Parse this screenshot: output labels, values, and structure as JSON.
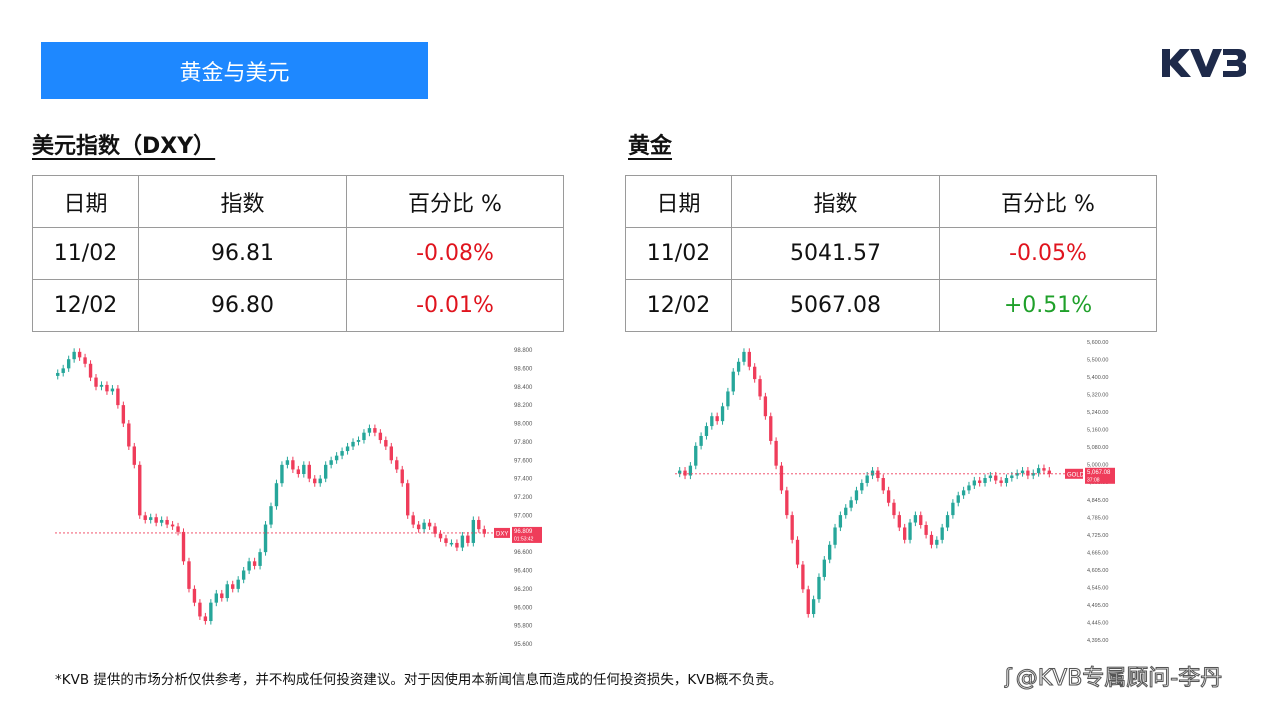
{
  "banner": {
    "title": "黄金与美元"
  },
  "brand": {
    "logo_text": "KVB",
    "color": "#1e2a4a"
  },
  "dxy": {
    "heading": "美元指数（DXY）",
    "headers": [
      "日期",
      "指数",
      "百分比 %"
    ],
    "rows": [
      {
        "date": "11/02",
        "value": "96.81",
        "change": "-0.08%",
        "direction": "down"
      },
      {
        "date": "12/02",
        "value": "96.80",
        "change": "-0.01%",
        "direction": "down"
      }
    ]
  },
  "gold": {
    "heading": "黄金",
    "headers": [
      "日期",
      "指数",
      "百分比 %"
    ],
    "rows": [
      {
        "date": "11/02",
        "value": "5041.57",
        "change": "-0.05%",
        "direction": "down"
      },
      {
        "date": "12/02",
        "value": "5067.08",
        "change": "+0.51%",
        "direction": "up"
      }
    ]
  },
  "colors": {
    "accent": "#1e88ff",
    "negative": "#e0141e",
    "positive": "#1fa02a",
    "bull": "#26a69a",
    "bear": "#ef3c5a"
  },
  "chart_data": [
    {
      "type": "candlestick",
      "symbol_label": "DXY",
      "last_price_label": "96.809",
      "sub_label": "01:53:42",
      "ylim": [
        95.6,
        98.8
      ],
      "y_ticks": [
        "98.800",
        "98.600",
        "98.400",
        "98.200",
        "98.000",
        "97.800",
        "97.600",
        "97.400",
        "97.200",
        "97.000",
        "96.800",
        "96.600",
        "96.400",
        "96.200",
        "96.000",
        "95.800",
        "95.600"
      ],
      "last_value": 96.809,
      "close_path": [
        98.55,
        98.6,
        98.7,
        98.78,
        98.72,
        98.65,
        98.5,
        98.4,
        98.42,
        98.35,
        98.38,
        98.2,
        98.0,
        97.75,
        97.55,
        97.0,
        96.95,
        96.98,
        96.92,
        96.95,
        96.9,
        96.88,
        96.82,
        96.5,
        96.2,
        96.05,
        95.9,
        95.85,
        96.05,
        96.15,
        96.1,
        96.25,
        96.2,
        96.3,
        96.4,
        96.5,
        96.45,
        96.6,
        96.9,
        97.1,
        97.35,
        97.55,
        97.6,
        97.5,
        97.45,
        97.55,
        97.4,
        97.35,
        97.4,
        97.55,
        97.6,
        97.65,
        97.7,
        97.75,
        97.8,
        97.82,
        97.9,
        97.95,
        97.9,
        97.82,
        97.75,
        97.6,
        97.5,
        97.35,
        97.0,
        96.9,
        96.85,
        96.92,
        96.88,
        96.8,
        96.75,
        96.7,
        96.7,
        96.65,
        96.78,
        96.7,
        96.95,
        96.85,
        96.8
      ]
    },
    {
      "type": "candlestick",
      "symbol_label": "GOLD",
      "last_price_label": "5,067.08",
      "sub_label": "37:08",
      "ylim": [
        4395,
        5600
      ],
      "y_ticks": [
        "5,600.00",
        "5,500.00",
        "5,400.00",
        "5,320.00",
        "5,240.00",
        "5,160.00",
        "5,080.00",
        "5,000.00",
        "4,900.00",
        "4,845.00",
        "4,785.00",
        "4,725.00",
        "4,665.00",
        "4,605.00",
        "4,545.00",
        "4,495.00",
        "4,445.00",
        "4,395.00"
      ],
      "last_value": 5067.08,
      "close_path": [
        5080,
        5060,
        5100,
        5180,
        5220,
        5260,
        5300,
        5280,
        5340,
        5400,
        5480,
        5520,
        5560,
        5500,
        5450,
        5380,
        5300,
        5200,
        5100,
        5000,
        4900,
        4800,
        4700,
        4600,
        4500,
        4560,
        4650,
        4720,
        4780,
        4850,
        4900,
        4930,
        4960,
        5000,
        5030,
        5060,
        5080,
        5050,
        5000,
        4950,
        4900,
        4850,
        4800,
        4870,
        4900,
        4860,
        4820,
        4780,
        4800,
        4850,
        4900,
        4950,
        4980,
        5000,
        5020,
        5040,
        5030,
        5050,
        5060,
        5040,
        5030,
        5050,
        5060,
        5070,
        5080,
        5060,
        5070,
        5090,
        5080,
        5067
      ]
    }
  ],
  "footer": {
    "disclaimer": "*KVB 提供的市场分析仅供参考，并不构成任何投资建议。对于因使用本新闻信息而造成的任何投资损失，KVB概不负责。",
    "watermark": "@KVB专属顾问-李丹"
  }
}
